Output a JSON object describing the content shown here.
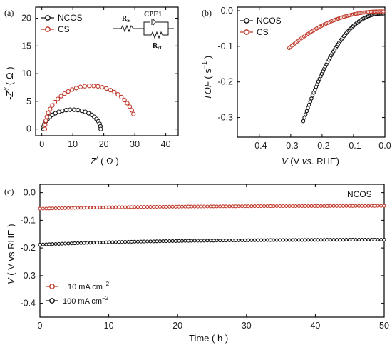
{
  "colors": {
    "ncos": "#111111",
    "cs": "#c0392b",
    "axis": "#000000"
  },
  "chart_data": [
    {
      "type": "scatter",
      "panel": "(a)",
      "xlabel": "Z",
      "xlabel_sup": "/",
      "xlabel_unit": "( Ω )",
      "ylabel": "-Z",
      "ylabel_sup": "//",
      "ylabel_unit": "( Ω )",
      "xlim": [
        -2,
        44
      ],
      "ylim": [
        -1.2,
        22
      ],
      "xticks": [
        "0",
        "10",
        "20",
        "30",
        "40"
      ],
      "yticks": [
        "0",
        "5",
        "10",
        "15",
        "20"
      ],
      "legend_placement": "top-left",
      "circuit": {
        "rs": "R",
        "rs_sub": "S",
        "cpe": "CPE1",
        "rct": "R",
        "rct_sub": "ct"
      },
      "series": [
        {
          "name": "NCOS",
          "color_key": "ncos",
          "shape": "semicircle",
          "x_start": 0.5,
          "x_end": 19.0,
          "y_max": 3.5,
          "n": 24
        },
        {
          "name": "CS",
          "color_key": "cs",
          "shape": "arc",
          "x_start": 1.0,
          "x_end": 30.5,
          "y_max": 7.8,
          "y_end": 2.7,
          "n": 30
        }
      ]
    },
    {
      "type": "scatter",
      "panel": "(b)",
      "xlabel": "V",
      "xlabel_rest": "(V ",
      "xlabel_vs": "vs.",
      "xlabel_end": " RHE)",
      "ylabel": "TOF",
      "ylabel_unit": "( s",
      "ylabel_sup": "−1",
      "ylabel_end": " )",
      "xlim": [
        -0.47,
        0.0
      ],
      "ylim": [
        -0.355,
        0.01
      ],
      "xticks": [
        "-0.4",
        "-0.3",
        "-0.2",
        "-0.1",
        "0.0"
      ],
      "yticks": [
        "0.0",
        "-0.1",
        "-0.2",
        "-0.3"
      ],
      "legend_placement": "top-left",
      "series": [
        {
          "name": "NCOS",
          "color_key": "ncos",
          "x_start": -0.26,
          "x_end": -0.005,
          "y_start": -0.31,
          "y_end": -0.008,
          "n": 70
        },
        {
          "name": "CS",
          "color_key": "cs",
          "x_start": -0.305,
          "x_end": -0.005,
          "y_start": -0.105,
          "y_end": -0.002,
          "n": 70
        }
      ]
    },
    {
      "type": "line",
      "panel": "(c)",
      "xlabel": "Time",
      "xlabel_unit": "( h )",
      "ylabel": "V",
      "ylabel_unit": "( V vs RHE )",
      "xlim": [
        0,
        50
      ],
      "ylim": [
        -0.45,
        0.03
      ],
      "xticks": [
        "0",
        "10",
        "20",
        "30",
        "40",
        "50"
      ],
      "yticks": [
        "0.0",
        "-0.1",
        "-0.2",
        "-0.3",
        "-0.4"
      ],
      "annotation": "NCOS",
      "legend_placement": "bottom-left",
      "series": [
        {
          "name": "10 mA cm",
          "sup": "−2",
          "color_key": "cs",
          "y_start": -0.058,
          "y_end": -0.048,
          "n": 110
        },
        {
          "name": "100 mA cm",
          "sup": "−2",
          "color_key": "ncos",
          "y_start": -0.188,
          "y_end": -0.17,
          "n": 110
        }
      ]
    }
  ]
}
